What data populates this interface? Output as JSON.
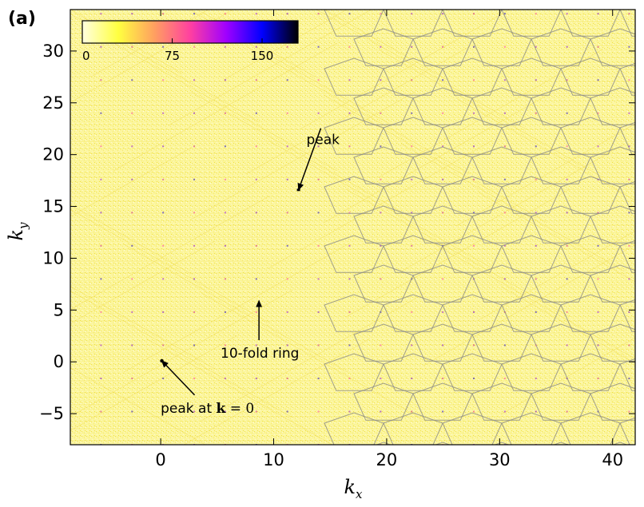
{
  "panel_label": "(a)",
  "chart_data": {
    "type": "heatmap",
    "title": "",
    "xlabel": "k_x",
    "ylabel": "k_y",
    "xlim": [
      -8,
      42
    ],
    "ylim": [
      -8,
      34
    ],
    "xticks": [
      0,
      10,
      20,
      30,
      40
    ],
    "yticks": [
      -5,
      0,
      5,
      10,
      15,
      20,
      25,
      30
    ],
    "colorbar": {
      "ticks": [
        0,
        75,
        150
      ],
      "range": [
        0,
        180
      ],
      "colormap": [
        "#ffffe0",
        "#ffff40",
        "#ffa060",
        "#ff40a0",
        "#a000ff",
        "#0000ff",
        "#000000"
      ]
    },
    "grid": false,
    "annotations": [
      {
        "text": "peak",
        "xy": [
          12.2,
          16.6
        ],
        "text_xy": [
          12.9,
          21.0
        ]
      },
      {
        "text": "10-fold ring",
        "xy": [
          8.7,
          5.9
        ],
        "text_xy": [
          5.3,
          0.4
        ]
      },
      {
        "text_parts": [
          "peak at ",
          "k",
          " = ",
          "0"
        ],
        "xy": [
          0.1,
          0.1
        ],
        "text_xy": [
          0.0,
          -4.9
        ]
      }
    ]
  }
}
